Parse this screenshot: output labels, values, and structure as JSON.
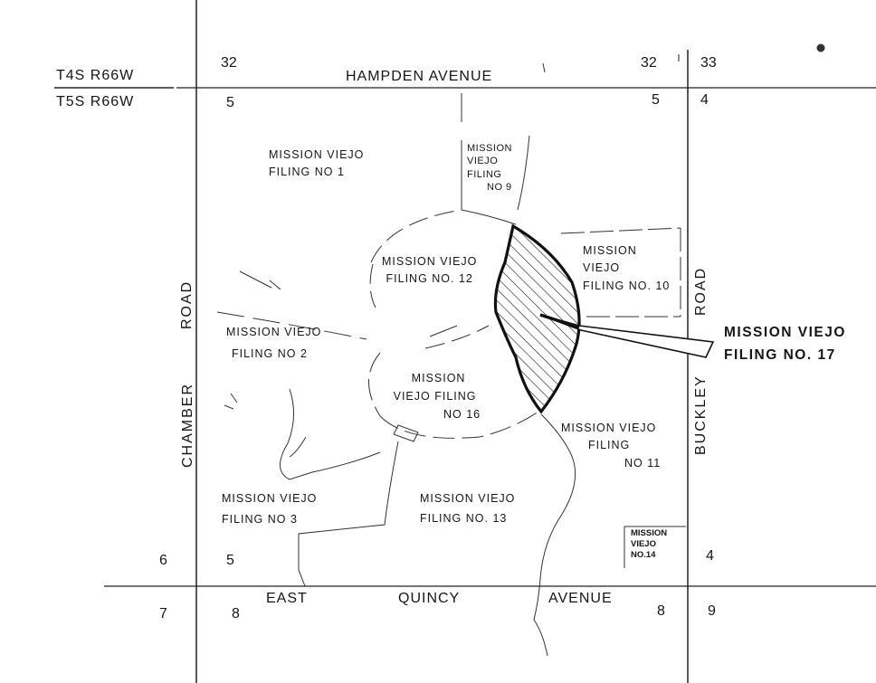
{
  "township_labels": {
    "north": "T4S R66W",
    "south": "T5S R66W"
  },
  "section_numbers": {
    "nw_upper": "32",
    "nw_lower": "5",
    "ne_upper_left": "32",
    "ne_upper_right": "33",
    "ne_lower_left": "5",
    "ne_lower_right": "4",
    "sw_upper_left": "6",
    "sw_upper_right": "5",
    "sw_lower_left": "7",
    "sw_lower_right": "8",
    "se_upper_right": "4",
    "se_lower_left": "8",
    "se_lower_right": "9"
  },
  "streets": {
    "hampden": "HAMPDEN   AVENUE",
    "quincy_east": "EAST",
    "quincy_name": "QUINCY",
    "quincy_avenue": "AVENUE",
    "chamber": "CHAMBER",
    "chamber_road": "ROAD",
    "buckley": "BUCKLEY",
    "buckley_road": "ROAD"
  },
  "filings": {
    "f1": [
      "MISSION  VIEJO",
      "FILING  NO 1"
    ],
    "f9": [
      "MISSION",
      "VIEJO",
      "FILING",
      "NO 9"
    ],
    "f12": [
      "MISSION  VIEJO",
      "FILING  NO. 12"
    ],
    "f10": [
      "MISSION",
      "VIEJO",
      "FILING NO. 10"
    ],
    "f2": [
      "MISSION  VIEJO",
      "FILING  NO  2"
    ],
    "f16": [
      "MISSION",
      "VIEJO FILING",
      "NO 16"
    ],
    "f11": [
      "MISSION VIEJO",
      "FILING",
      "NO 11"
    ],
    "f3": [
      "MISSION  VIEJO",
      "FILING  NO  3"
    ],
    "f13": [
      "MISSION  VIEJO",
      "FILING  NO. 13"
    ],
    "f14": [
      "MISSION",
      "VIEJO",
      "NO.14"
    ]
  },
  "highlight": {
    "line1": "MISSION  VIEJO",
    "line2": "FILING    NO.  17"
  },
  "colors": {
    "ink": "#161616",
    "paper": "#ffffff"
  }
}
